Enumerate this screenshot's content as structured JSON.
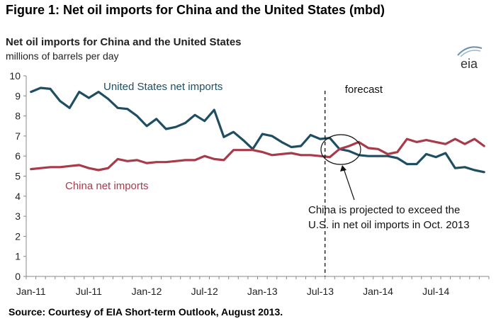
{
  "figure_heading": "Figure 1: Net oil imports for China and the United States (mbd)",
  "source": "Source: Courtesy of EIA Short-term Outlook, August 2013.",
  "logo_text": "eia",
  "colors": {
    "united_states": "#1f4e63",
    "china": "#a83a4a",
    "axis": "#888888"
  },
  "chart_data": {
    "type": "line",
    "title": "Net oil imports for China and the United States",
    "subtitle": "millions of barrels per day",
    "ylim": [
      0,
      10
    ],
    "yticks": [
      "0",
      "1",
      "2",
      "3",
      "4",
      "5",
      "6",
      "7",
      "8",
      "9",
      "10"
    ],
    "xtick_labels": [
      "Jan-11",
      "Jul-11",
      "Jan-12",
      "Jul-12",
      "Jan-13",
      "Jul-13",
      "Jan-14",
      "Jul-14"
    ],
    "x_months": [
      "2011-01",
      "2011-02",
      "2011-03",
      "2011-04",
      "2011-05",
      "2011-06",
      "2011-07",
      "2011-08",
      "2011-09",
      "2011-10",
      "2011-11",
      "2011-12",
      "2012-01",
      "2012-02",
      "2012-03",
      "2012-04",
      "2012-05",
      "2012-06",
      "2012-07",
      "2012-08",
      "2012-09",
      "2012-10",
      "2012-11",
      "2012-12",
      "2013-01",
      "2013-02",
      "2013-03",
      "2013-04",
      "2013-05",
      "2013-06",
      "2013-07",
      "2013-08",
      "2013-09",
      "2013-10",
      "2013-11",
      "2013-12",
      "2014-01",
      "2014-02",
      "2014-03",
      "2014-04",
      "2014-05",
      "2014-06",
      "2014-07",
      "2014-08",
      "2014-09",
      "2014-10",
      "2014-11",
      "2014-12"
    ],
    "forecast_start": "2013-08",
    "series": [
      {
        "name": "United States net imports",
        "values": [
          9.2,
          9.4,
          9.35,
          8.75,
          8.4,
          9.2,
          8.9,
          9.2,
          8.85,
          8.4,
          8.35,
          8.0,
          7.5,
          7.85,
          7.35,
          7.45,
          7.65,
          8.05,
          7.75,
          8.3,
          6.95,
          7.2,
          6.8,
          6.35,
          7.1,
          7.0,
          6.7,
          6.45,
          6.5,
          7.05,
          6.85,
          6.9,
          6.35,
          6.25,
          6.05,
          6.0,
          6.0,
          6.0,
          5.9,
          5.6,
          5.6,
          6.1,
          5.95,
          6.15,
          5.4,
          5.45,
          5.3,
          5.2
        ]
      },
      {
        "name": "China net imports",
        "values": [
          5.35,
          5.4,
          5.45,
          5.45,
          5.5,
          5.55,
          5.4,
          5.3,
          5.4,
          5.85,
          5.75,
          5.8,
          5.65,
          5.7,
          5.7,
          5.75,
          5.8,
          5.8,
          6.0,
          5.85,
          5.8,
          6.3,
          6.3,
          6.3,
          6.2,
          6.05,
          6.1,
          6.15,
          6.05,
          6.05,
          6.0,
          5.95,
          6.35,
          6.5,
          6.7,
          6.4,
          6.35,
          6.1,
          6.2,
          6.85,
          6.7,
          6.8,
          6.7,
          6.6,
          6.85,
          6.6,
          6.85,
          6.5
        ]
      }
    ],
    "annotations": {
      "forecast_label": "forecast",
      "callout_line1": "China is projected to exceed the",
      "callout_line2": "U.S. in net oil imports in Oct. 2013"
    },
    "grid": false,
    "legend": "inline"
  }
}
